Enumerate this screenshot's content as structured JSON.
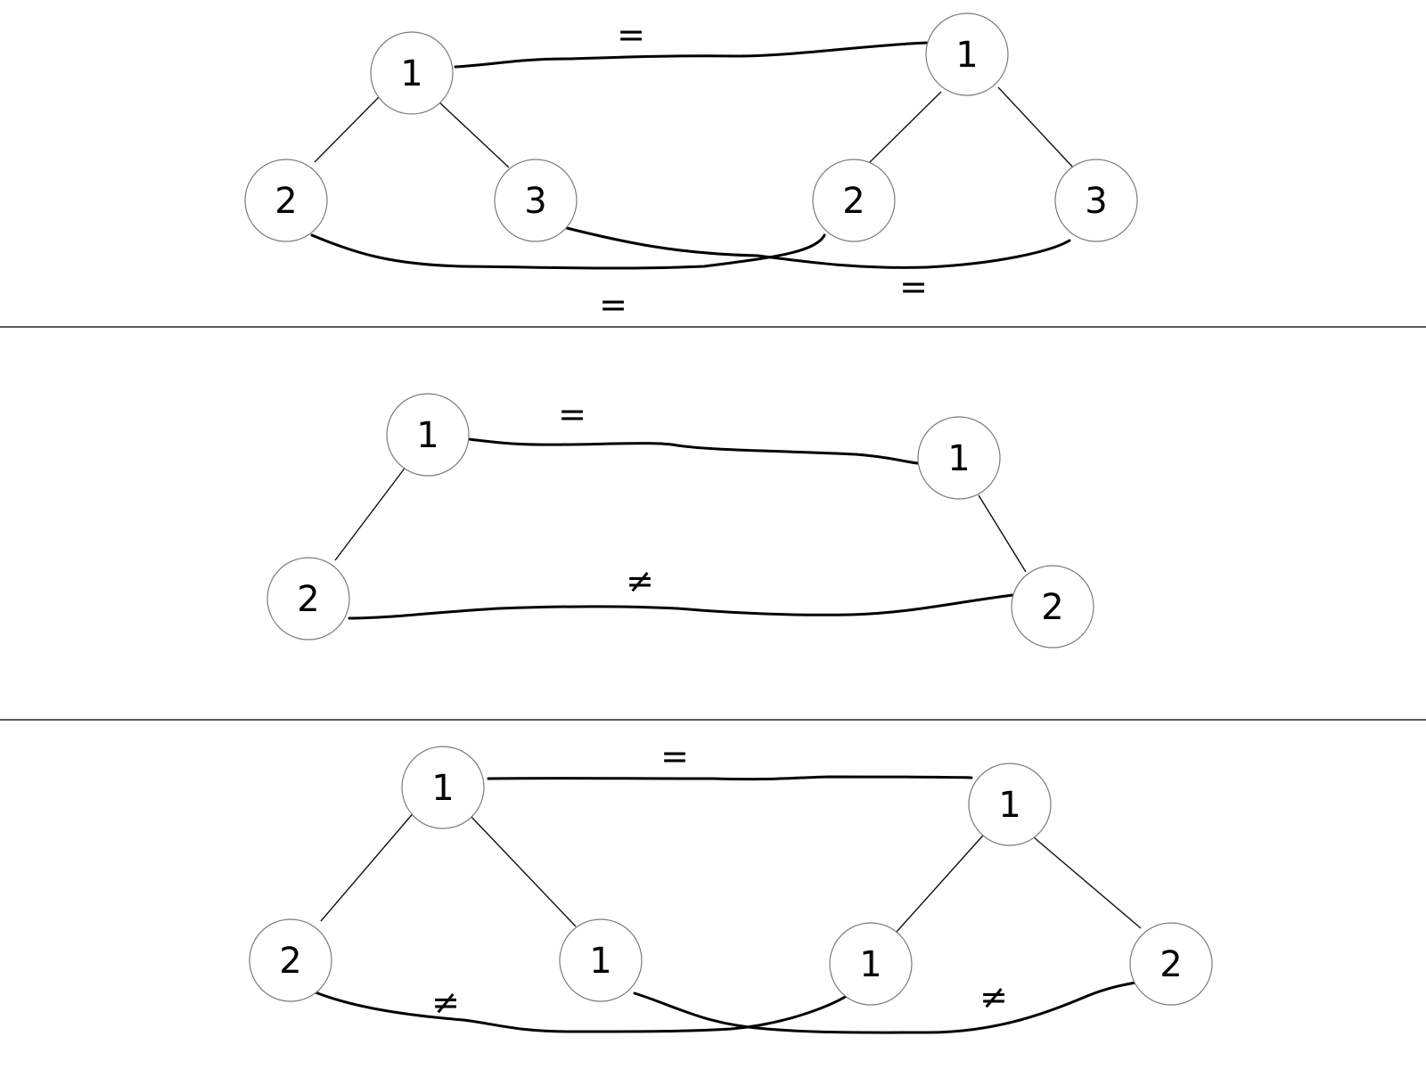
{
  "diagrams": [
    {
      "id": "example-1",
      "nodes": [
        "1",
        "2",
        "3",
        "1",
        "2",
        "3"
      ],
      "comparisons": [
        "=",
        "=",
        "="
      ]
    },
    {
      "id": "example-2",
      "nodes": [
        "1",
        "2",
        "1",
        "2"
      ],
      "comparisons": [
        "=",
        "≠"
      ]
    },
    {
      "id": "example-3",
      "nodes": [
        "1",
        "2",
        "1",
        "1",
        "1",
        "2"
      ],
      "comparisons": [
        "=",
        "≠",
        "≠"
      ]
    }
  ]
}
